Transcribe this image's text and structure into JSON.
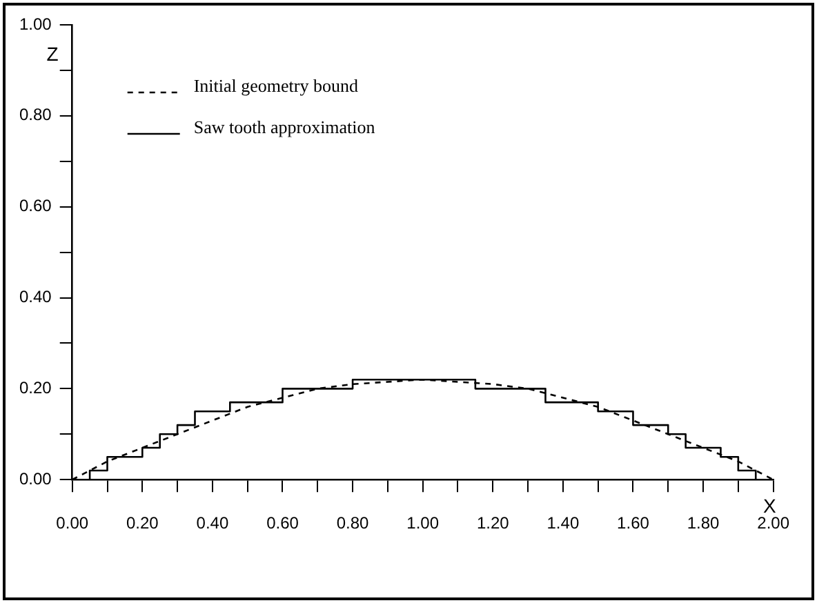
{
  "chart_data": {
    "type": "line",
    "xlabel": "X",
    "ylabel": "Z",
    "xlim": [
      0,
      2
    ],
    "ylim": [
      0,
      1
    ],
    "xticks": [
      {
        "value": 0,
        "label": "0.00"
      },
      {
        "value": 0.1,
        "label": null
      },
      {
        "value": 0.2,
        "label": "0.20"
      },
      {
        "value": 0.3,
        "label": null
      },
      {
        "value": 0.4,
        "label": "0.40"
      },
      {
        "value": 0.5,
        "label": null
      },
      {
        "value": 0.6,
        "label": "0.60"
      },
      {
        "value": 0.7,
        "label": null
      },
      {
        "value": 0.8,
        "label": "0.80"
      },
      {
        "value": 0.9,
        "label": null
      },
      {
        "value": 1,
        "label": "1.00"
      },
      {
        "value": 1.1,
        "label": null
      },
      {
        "value": 1.2,
        "label": "1.20"
      },
      {
        "value": 1.3,
        "label": null
      },
      {
        "value": 1.4,
        "label": "1.40"
      },
      {
        "value": 1.5,
        "label": null
      },
      {
        "value": 1.6,
        "label": "1.60"
      },
      {
        "value": 1.7,
        "label": null
      },
      {
        "value": 1.8,
        "label": "1.80"
      },
      {
        "value": 1.9,
        "label": null
      },
      {
        "value": 2,
        "label": "2.00"
      }
    ],
    "yticks": [
      {
        "value": 0,
        "label": "0.00"
      },
      {
        "value": 0.1,
        "label": null
      },
      {
        "value": 0.2,
        "label": "0.20"
      },
      {
        "value": 0.3,
        "label": null
      },
      {
        "value": 0.4,
        "label": "0.40"
      },
      {
        "value": 0.5,
        "label": null
      },
      {
        "value": 0.6,
        "label": "0.60"
      },
      {
        "value": 0.7,
        "label": null
      },
      {
        "value": 0.8,
        "label": "0.80"
      },
      {
        "value": 0.9,
        "label": null
      },
      {
        "value": 1,
        "label": "1.00"
      }
    ],
    "grid": false,
    "legend": "top left",
    "marker": "none",
    "series": [
      {
        "name": "Initial geometry bound",
        "type": "line",
        "line_style": "dashed",
        "color": "#000000",
        "x": [
          0,
          0.1,
          0.2,
          0.3,
          0.4,
          0.5,
          0.6,
          0.7,
          0.8,
          0.9,
          1,
          1.1,
          1.2,
          1.3,
          1.4,
          1.5,
          1.6,
          1.7,
          1.8,
          1.9,
          2
        ],
        "values": [
          0,
          0.04,
          0.07,
          0.1,
          0.13,
          0.16,
          0.18,
          0.2,
          0.21,
          0.215,
          0.22,
          0.215,
          0.21,
          0.2,
          0.18,
          0.16,
          0.13,
          0.1,
          0.07,
          0.04,
          0
        ]
      },
      {
        "name": "Saw tooth approximation",
        "type": "step",
        "line_style": "solid",
        "color": "#000000",
        "x": [
          0,
          0.05,
          0.1,
          0.2,
          0.25,
          0.3,
          0.35,
          0.45,
          0.6,
          0.8,
          1.15,
          1.35,
          1.5,
          1.6,
          1.7,
          1.75,
          1.85,
          1.9,
          1.95
        ],
        "values": [
          0,
          0.02,
          0.05,
          0.07,
          0.1,
          0.12,
          0.15,
          0.17,
          0.2,
          0.22,
          0.2,
          0.17,
          0.15,
          0.12,
          0.1,
          0.07,
          0.05,
          0.02,
          0
        ]
      }
    ]
  }
}
